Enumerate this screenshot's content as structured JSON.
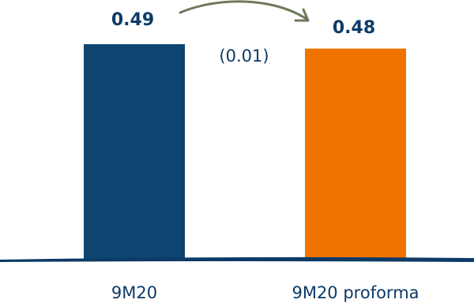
{
  "chart_data": {
    "type": "bar",
    "categories": [
      "9M20",
      "9M20 proforma"
    ],
    "values": [
      0.49,
      0.48
    ],
    "value_labels": [
      "0.49",
      "0.48"
    ],
    "change_label": "(0.01)",
    "ylim": [
      0,
      0.55
    ],
    "grid": false,
    "legend": "none",
    "colors": [
      "#0d4470",
      "#f07300"
    ],
    "arrow_color": "#6e7a5a",
    "axis_color": "#0d3a66",
    "label_color": "#0d3a66"
  }
}
